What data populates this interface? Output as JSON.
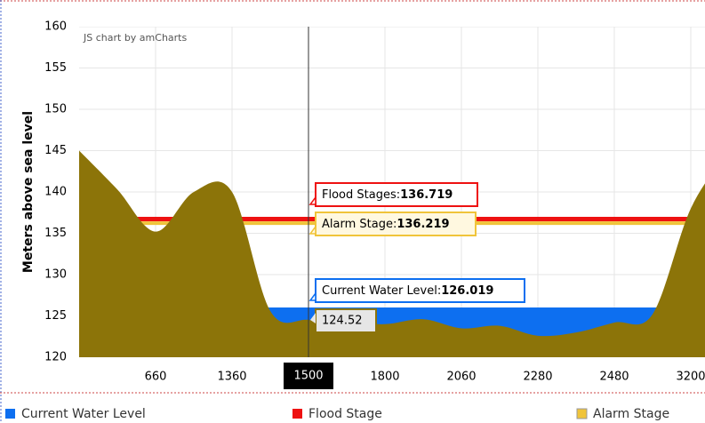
{
  "chart_data": {
    "type": "area",
    "credit": "JS chart by amCharts",
    "y_label": "Meters above sea level",
    "ylim": [
      120,
      160
    ],
    "yticks": [
      120,
      125,
      130,
      135,
      140,
      145,
      150,
      155,
      160
    ],
    "grid": true,
    "categories": [
      null,
      null,
      "660",
      null,
      "1360",
      null,
      "1500",
      null,
      "1800",
      null,
      "2060",
      null,
      "2280",
      null,
      "2480",
      null,
      "3200",
      null
    ],
    "terrain": {
      "color": "#8c7409",
      "values": [
        145,
        140.3,
        135.2,
        140,
        140,
        125.6,
        124.52,
        124.3,
        124,
        124.6,
        123.5,
        123.8,
        122.6,
        123,
        124.2,
        125.2,
        138,
        145
      ]
    },
    "levels": [
      {
        "name": "Current Water Level",
        "balloon": "Current Water Level:",
        "value": 126.019,
        "color": "#0d6ff0"
      },
      {
        "name": "Flood Stage",
        "balloon": "Flood Stages:",
        "value": 136.719,
        "color": "#ee1111"
      },
      {
        "name": "Alarm Stage",
        "balloon": "Alarm Stage:",
        "value": 136.219,
        "color": "#f0c43a"
      }
    ]
  }
}
